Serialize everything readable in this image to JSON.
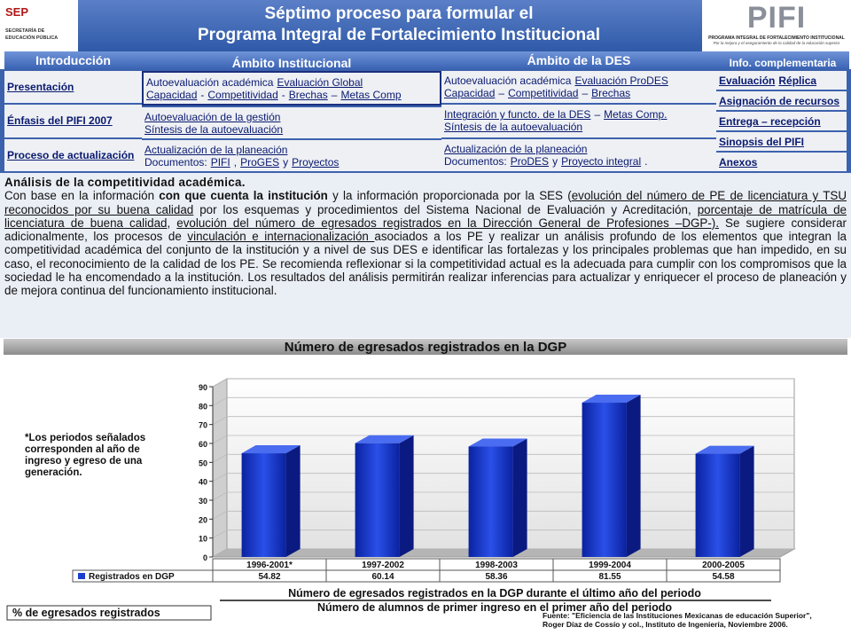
{
  "header": {
    "title_lines": [
      "Séptimo proceso para formular el",
      "Programa Integral de Fortalecimiento Institucional"
    ],
    "left_logo": {
      "name": "SEP",
      "line1": "SECRETARÍA DE",
      "line2": "EDUCACIÓN PÚBLICA"
    },
    "right_logo": {
      "name": "PIFI",
      "line1": "PROGRAMA INTEGRAL DE FORTALECIMIENTO INSTITUCIONAL",
      "line2": "Por la mejora y el aseguramiento de la calidad de la educación superior"
    }
  },
  "nav": {
    "tabs": [
      "Introducción",
      "Ámbito Institucional",
      "Ámbito de la DES",
      "Info. complementaria"
    ],
    "columns": [
      [
        [
          [
            {
              "text": "Presentación",
              "underline": true
            }
          ]
        ],
        [
          [
            {
              "text": "Énfasis del PIFI 2007",
              "underline": true
            }
          ]
        ],
        [
          [
            {
              "text": "Proceso de actualización",
              "underline": true
            }
          ]
        ]
      ],
      [
        [
          [
            {
              "text": "Autoevaluación académica"
            },
            {
              "text": "Evaluación Global",
              "underline": true
            }
          ],
          [
            {
              "text": "Capacidad",
              "underline": true
            },
            {
              "text": "-"
            },
            {
              "text": "Competitividad",
              "underline": true
            },
            {
              "text": "-"
            },
            {
              "text": "Brechas",
              "underline": true
            },
            {
              "text": "–"
            },
            {
              "text": "Metas Comp",
              "underline": true
            }
          ]
        ],
        [
          [
            {
              "text": "Autoevaluación de la gestión",
              "underline": true
            }
          ],
          [
            {
              "text": "Síntesis de la autoevaluación",
              "underline": true
            }
          ]
        ],
        [
          [
            {
              "text": "Actualización de la planeación",
              "underline": true
            }
          ],
          [
            {
              "text": "Documentos:"
            },
            {
              "text": "PIFI",
              "underline": true
            },
            {
              "text": ","
            },
            {
              "text": "ProGES",
              "underline": true
            },
            {
              "text": "y"
            },
            {
              "text": "Proyectos",
              "underline": true
            }
          ]
        ]
      ],
      [
        [
          [
            {
              "text": "Autoevaluación académica"
            },
            {
              "text": "Evaluación ProDES",
              "underline": true
            }
          ],
          [
            {
              "text": "Capacidad",
              "underline": true
            },
            {
              "text": "–"
            },
            {
              "text": "Competitividad",
              "underline": true
            },
            {
              "text": "–"
            },
            {
              "text": "Brechas",
              "underline": true
            }
          ]
        ],
        [
          [
            {
              "text": "Integración y functo. de la DES",
              "underline": true
            },
            {
              "text": "–"
            },
            {
              "text": "Metas Comp.",
              "underline": true
            }
          ],
          [
            {
              "text": "Síntesis de la autoevaluación",
              "underline": true
            }
          ]
        ],
        [
          [
            {
              "text": "Actualización de la planeación",
              "underline": true
            }
          ],
          [
            {
              "text": "Documentos:"
            },
            {
              "text": "ProDES",
              "underline": true
            },
            {
              "text": "y"
            },
            {
              "text": "Proyecto integral",
              "underline": true
            },
            {
              "text": "."
            }
          ]
        ]
      ],
      [
        [
          [
            {
              "text": "Evaluación",
              "underline": true
            },
            {
              "text": "Réplica",
              "underline": true
            }
          ]
        ],
        [
          [
            {
              "text": "Asignación de recursos",
              "underline": true
            }
          ]
        ],
        [
          [
            {
              "text": "Entrega – recepción",
              "underline": true
            }
          ]
        ],
        [
          [
            {
              "text": "Sinopsis del PIFI",
              "underline": true
            }
          ]
        ],
        [
          [
            {
              "text": "Anexos",
              "underline": true
            }
          ]
        ]
      ]
    ]
  },
  "analysis": {
    "heading": "Análisis de la competitividad académica.",
    "segments": [
      {
        "text": "Con base en la información "
      },
      {
        "text": "con que cuenta la institución",
        "bold": true
      },
      {
        "text": " y la información proporcionada por la SES ("
      },
      {
        "text": "evolución del número de PE de licenciatura y TSU reconocidos por su buena calidad",
        "underline": true
      },
      {
        "text": " por los esquemas y procedimientos del Sistema Nacional de Evaluación y Acreditación, "
      },
      {
        "text": "porcentaje de matrícula de licenciatura de buena calidad",
        "underline": true
      },
      {
        "text": ", "
      },
      {
        "text": "evolución del número de egresados registrados en la Dirección General de Profesiones –DGP-).",
        "underline": true
      },
      {
        "text": " Se sugiere considerar adicionalmente, los procesos de "
      },
      {
        "text": "vinculación e internacionalización ",
        "underline": true
      },
      {
        "text": "asociados a los PE y realizar un análisis profundo de los elementos que integran la competitividad académica del conjunto de la institución y a nivel de sus DES e identificar las fortalezas y los principales problemas que han impedido, en su caso, el reconocimiento de la calidad de los PE. Se recomienda reflexionar si la competitividad actual es la adecuada para cumplir con los compromisos que la sociedad le ha encomendado a la institución. Los resultados del análisis permitirán realizar inferencias para actualizar y enriquecer el proceso de planeación y de mejora continua del funcionamiento institucional."
      }
    ]
  },
  "chart_data": {
    "type": "bar",
    "title": "Número de egresados registrados en la DGP",
    "categories": [
      "1996-2001*",
      "1997-2002",
      "1998-2003",
      "1999-2004",
      "2000-2005"
    ],
    "series": [
      {
        "name": "Registrados en DGP",
        "color": "#1a3fd0",
        "values": [
          54.82,
          60.14,
          58.36,
          81.55,
          54.58
        ]
      }
    ],
    "ylim": [
      0,
      90
    ],
    "yticks": [
      0,
      10,
      20,
      30,
      40,
      50,
      60,
      70,
      80,
      90
    ],
    "grid": true,
    "note": "*Los periodos señalados corresponden al año de ingreso y egreso de una generación.",
    "formula_label": "% de egresados registrados",
    "numerator": "Número de egresados registrados en la DGP durante el último año del periodo",
    "denominator": "Número de alumnos de primer ingreso en el primer año del periodo",
    "source_lines": [
      "Fuente: \"Eficiencia de las Instituciones Mexicanas de educación Superior\",",
      "Roger Díaz de Cossío y col., Instituto de Ingeniería, Noviembre 2006."
    ]
  }
}
